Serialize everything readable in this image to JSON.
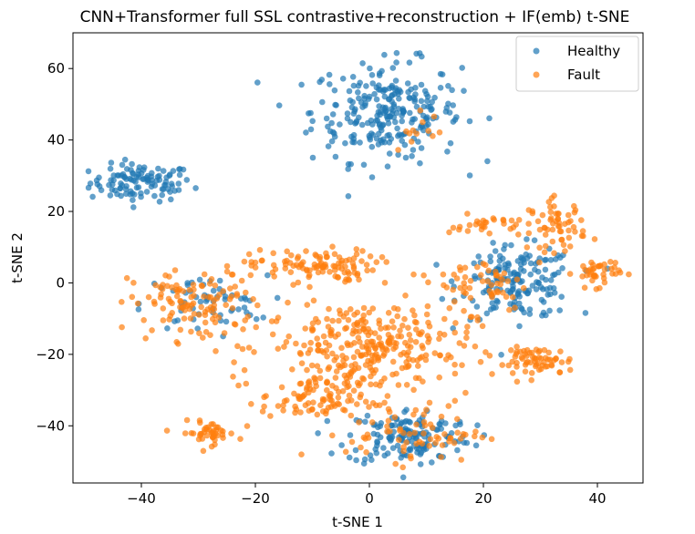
{
  "chart_data": {
    "type": "scatter",
    "title": "CNN+Transformer full SSL contrastive+reconstruction + IF(emb) t-SNE",
    "xlabel": "t-SNE 1",
    "ylabel": "t-SNE 2",
    "xlim": [
      -52,
      48
    ],
    "ylim": [
      -56,
      70
    ],
    "xticks": [
      -40,
      -20,
      0,
      20,
      40
    ],
    "yticks": [
      -40,
      -20,
      0,
      20,
      40,
      60
    ],
    "xtick_labels": [
      "−40",
      "−20",
      "0",
      "20",
      "40"
    ],
    "ytick_labels": [
      "−40",
      "−20",
      "0",
      "20",
      "40",
      "60"
    ],
    "grid": false,
    "legend_position": "top-right",
    "series": [
      {
        "name": "Healthy",
        "color": "#1f77b4",
        "clusters": [
          {
            "cx": -40,
            "cy": 28,
            "sx": 4.5,
            "sy": 2.6,
            "n": 110
          },
          {
            "cx": 3,
            "cy": 48,
            "sx": 6.5,
            "sy": 7,
            "n": 260
          },
          {
            "cx": 26,
            "cy": 0,
            "sx": 5,
            "sy": 5,
            "n": 170
          },
          {
            "cx": -29,
            "cy": -6,
            "sx": 5.5,
            "sy": 4,
            "n": 60
          },
          {
            "cx": 7,
            "cy": -43,
            "sx": 5.5,
            "sy": 4,
            "n": 150
          }
        ]
      },
      {
        "name": "Fault",
        "color": "#ff7f0e",
        "clusters": [
          {
            "cx": -10,
            "cy": 5,
            "sx": 5.5,
            "sy": 2.2,
            "n": 100
          },
          {
            "cx": -30,
            "cy": -6,
            "sx": 6,
            "sy": 5,
            "n": 120
          },
          {
            "cx": -28,
            "cy": -42,
            "sx": 2.5,
            "sy": 1.6,
            "n": 45
          },
          {
            "cx": 30,
            "cy": -22,
            "sx": 3,
            "sy": 2,
            "n": 60
          },
          {
            "cx": 33,
            "cy": 16,
            "sx": 2.5,
            "sy": 3.5,
            "n": 60
          },
          {
            "cx": 40,
            "cy": 3,
            "sx": 2,
            "sy": 2,
            "n": 40
          },
          {
            "cx": 21,
            "cy": 16,
            "sx": 3.5,
            "sy": 1.5,
            "n": 30
          },
          {
            "cx": 0,
            "cy": -18,
            "sx": 9,
            "sy": 7,
            "n": 320
          },
          {
            "cx": -10,
            "cy": -33,
            "sx": 4.5,
            "sy": 3,
            "n": 80
          },
          {
            "cx": 8,
            "cy": -42,
            "sx": 6,
            "sy": 4,
            "n": 70
          },
          {
            "cx": 20,
            "cy": 0,
            "sx": 4,
            "sy": 4,
            "n": 50
          },
          {
            "cx": 9,
            "cy": 44,
            "sx": 3.5,
            "sy": 4,
            "n": 12
          }
        ]
      }
    ]
  }
}
